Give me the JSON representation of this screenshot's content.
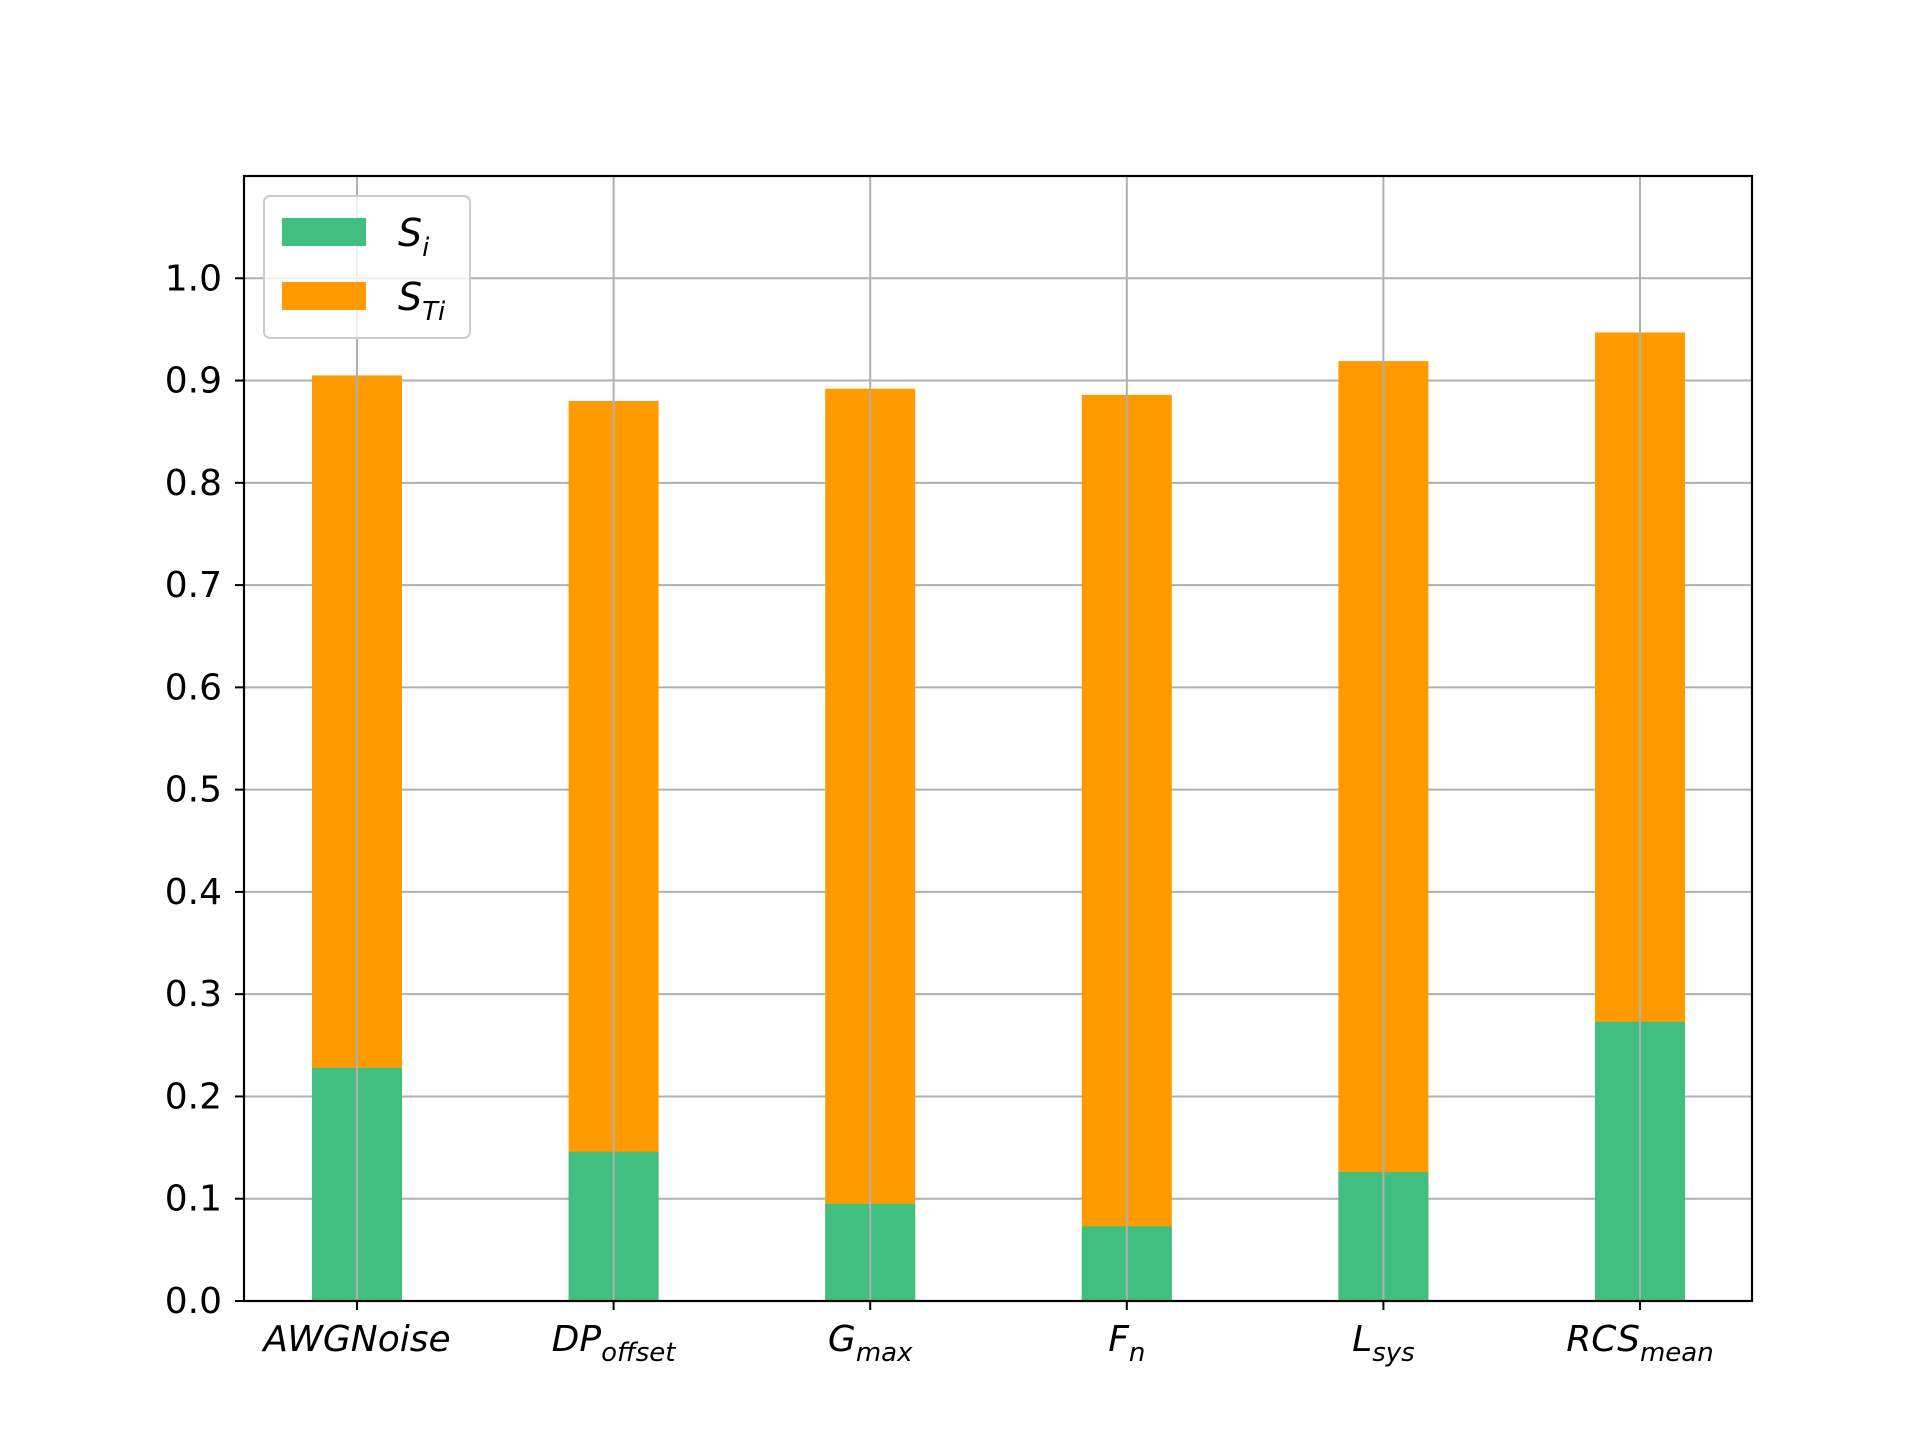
{
  "chart_data": {
    "type": "bar",
    "stacked": "overlay",
    "categories": [
      {
        "label": "AWGNoise",
        "base": "AWGNoise",
        "sub": ""
      },
      {
        "label": "DPoffset",
        "base": "DP",
        "sub": "offset"
      },
      {
        "label": "Gmax",
        "base": "G",
        "sub": "max"
      },
      {
        "label": "Fn",
        "base": "F",
        "sub": "n"
      },
      {
        "label": "Lsys",
        "base": "L",
        "sub": "sys"
      },
      {
        "label": "RCSmean",
        "base": "RCS",
        "sub": "mean"
      }
    ],
    "series": [
      {
        "name": "STi",
        "base": "S",
        "sub": "Ti",
        "color": "#ff9a00",
        "values": [
          0.905,
          0.88,
          0.892,
          0.886,
          0.919,
          0.947
        ]
      },
      {
        "name": "Si",
        "base": "S",
        "sub": "i",
        "color": "#41bf80",
        "values": [
          0.228,
          0.146,
          0.095,
          0.073,
          0.126,
          0.273
        ]
      }
    ],
    "legend_order": [
      "Si",
      "STi"
    ],
    "ylim": [
      0,
      1.1
    ],
    "yticks": [
      "0.0",
      "0.1",
      "0.2",
      "0.3",
      "0.4",
      "0.5",
      "0.6",
      "0.7",
      "0.8",
      "0.9",
      "1.0"
    ],
    "legend_position": "top-left",
    "grid": true,
    "title": "",
    "xlabel": "",
    "ylabel": ""
  }
}
